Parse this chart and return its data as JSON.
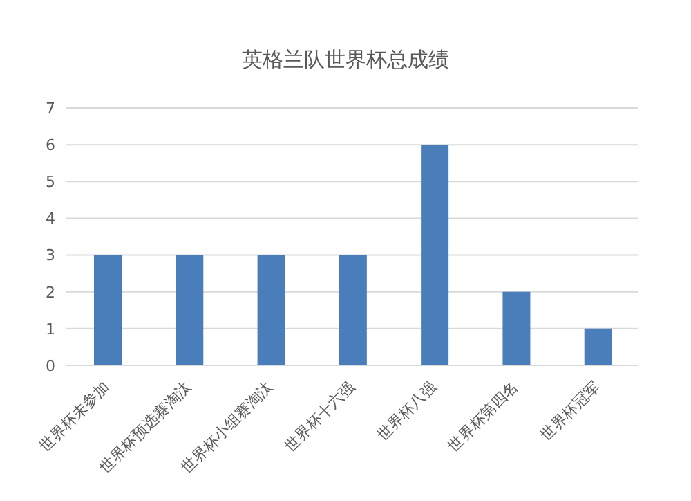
{
  "chart_data": {
    "type": "bar",
    "title": "英格兰队世界杯总成绩",
    "categories": [
      "世界杯未参加",
      "世界杯预选赛淘汰",
      "世界杯小组赛淘汰",
      "世界杯十六强",
      "世界杯八强",
      "世界杯第四名",
      "世界杯冠军"
    ],
    "values": [
      3,
      3,
      3,
      3,
      6,
      2,
      1
    ],
    "color": "#4a7ebb",
    "ylim": [
      0,
      7
    ],
    "yticks": [
      0,
      1,
      2,
      3,
      4,
      5,
      6,
      7
    ],
    "grid": "y"
  }
}
